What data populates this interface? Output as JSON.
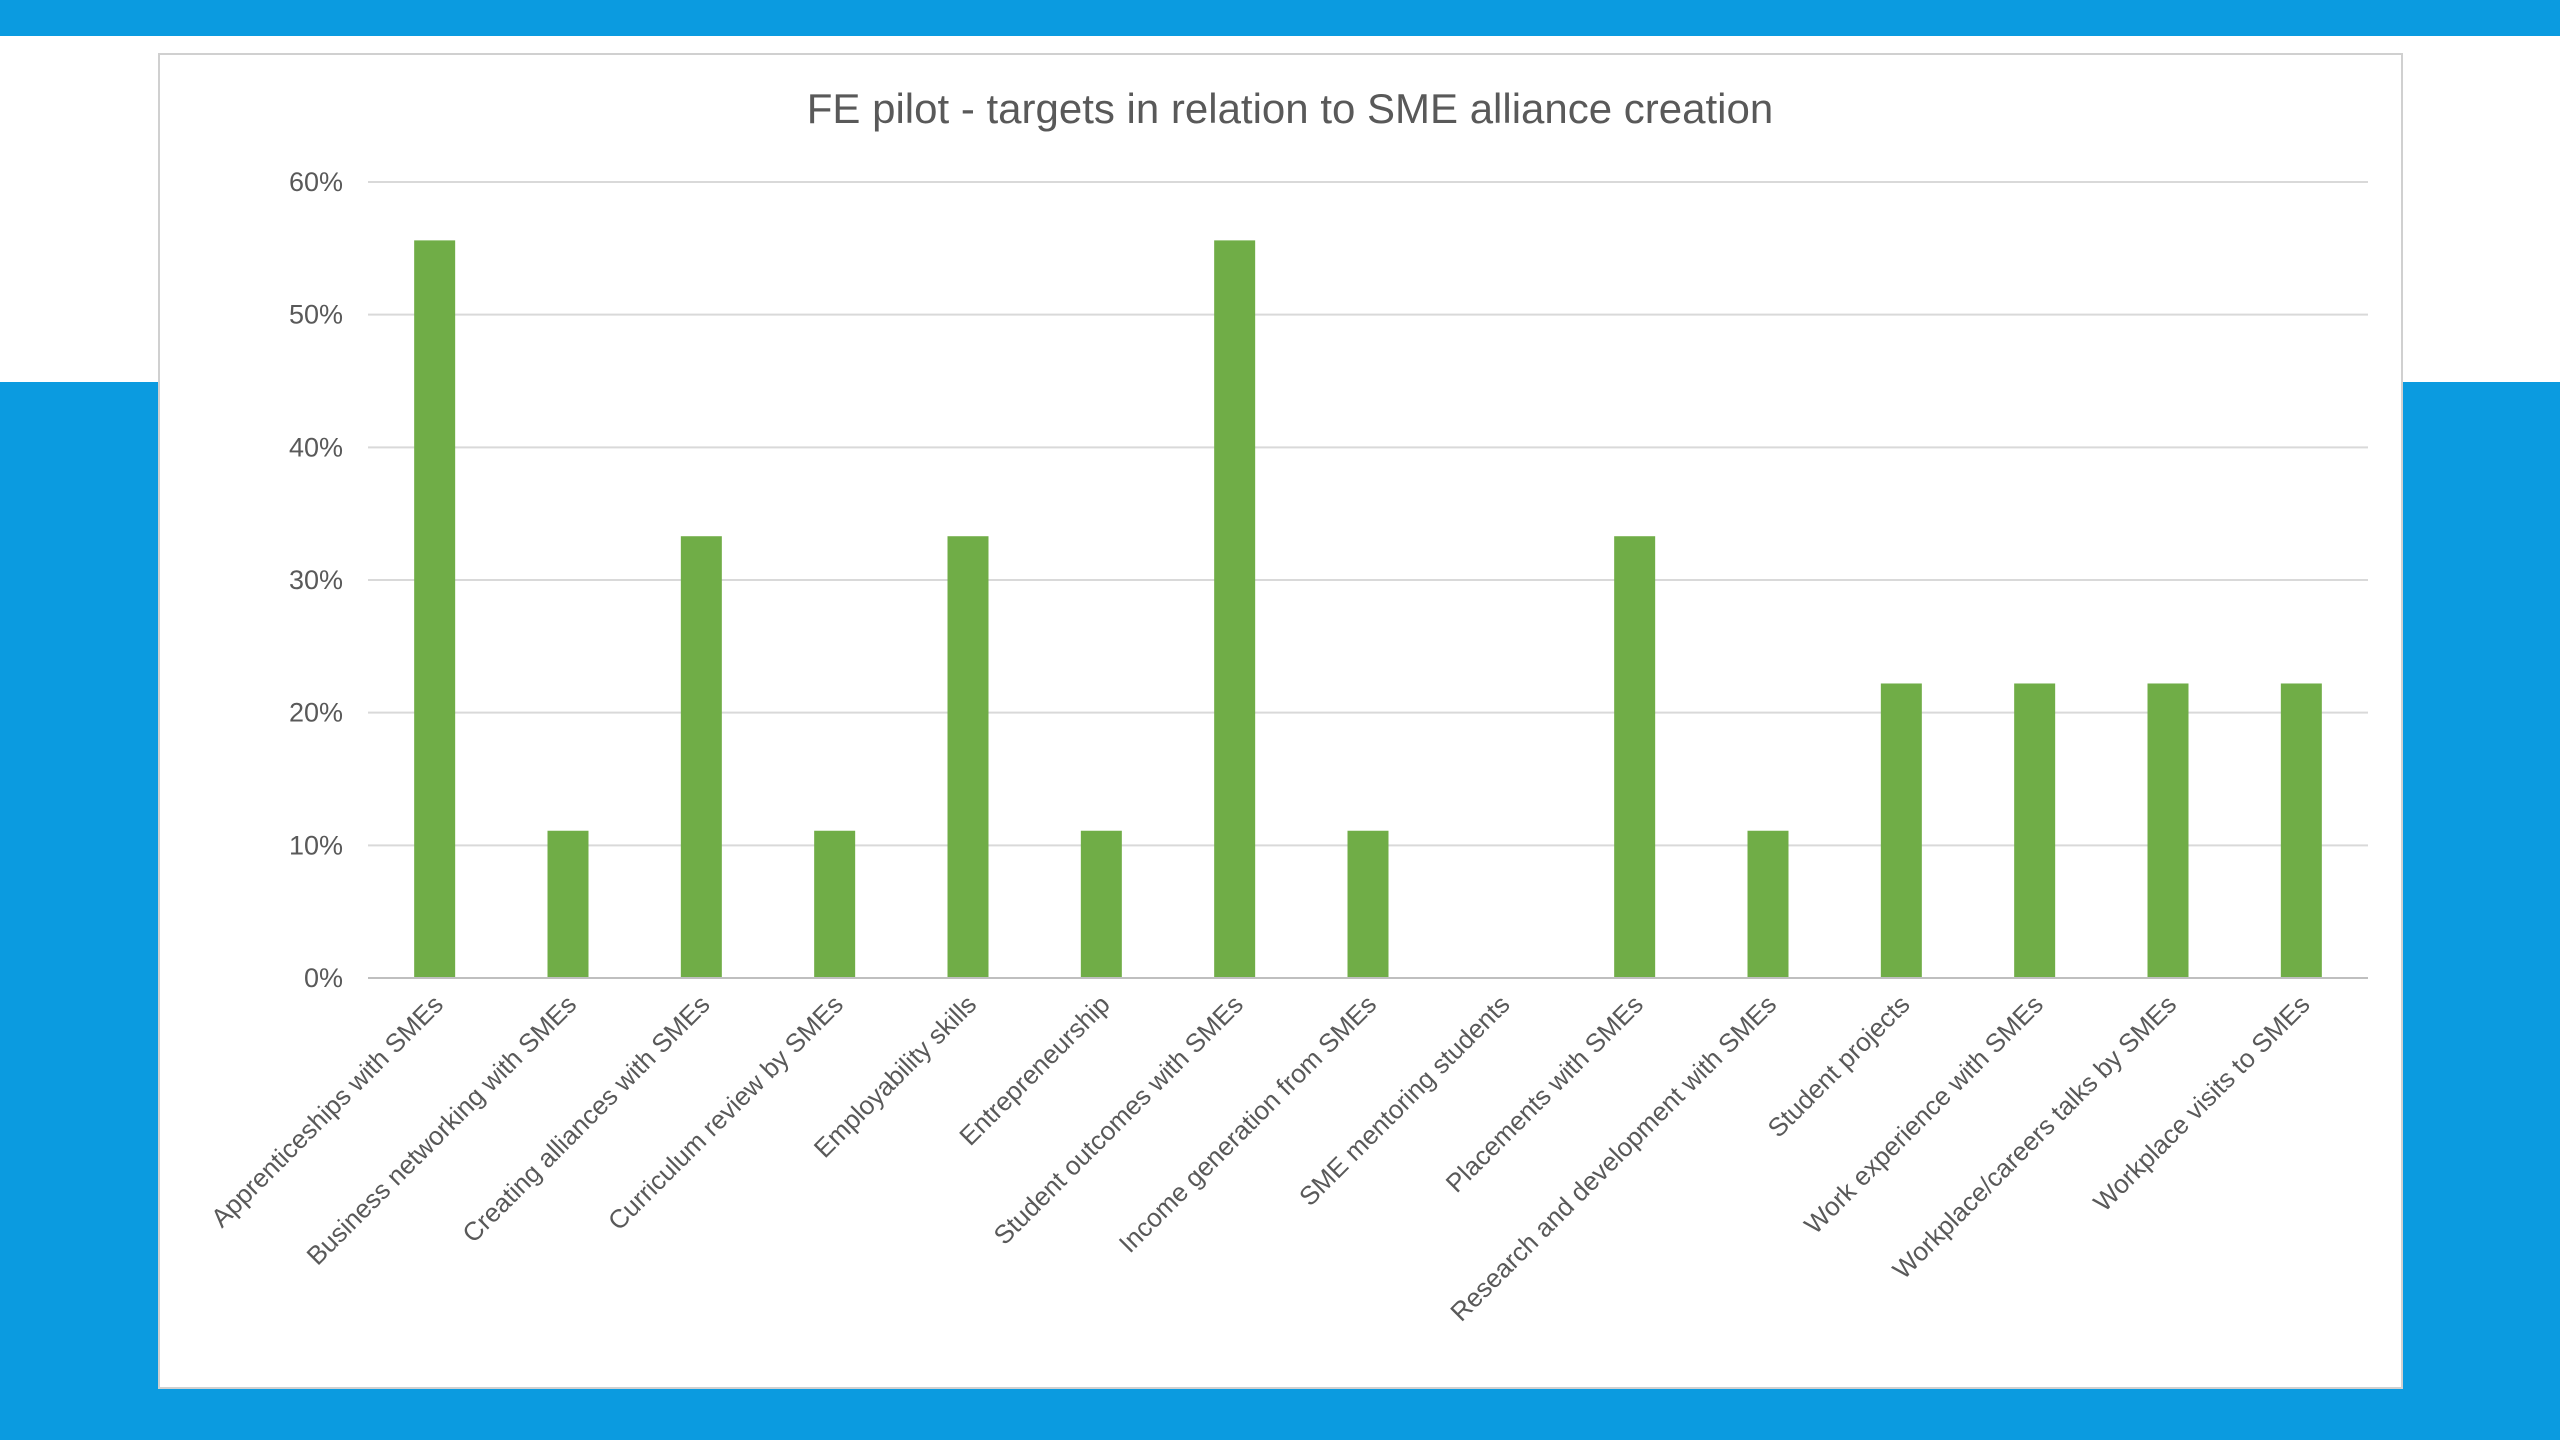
{
  "colors": {
    "background_blue": "#0b9be0",
    "bar": "#70ad47",
    "text": "#595959",
    "gridline": "#d9d9d9"
  },
  "chart_data": {
    "type": "bar",
    "title": "FE pilot - targets in relation to SME alliance creation",
    "xlabel": "",
    "ylabel": "",
    "ylim": [
      0,
      60
    ],
    "y_ticks": [
      "0%",
      "10%",
      "20%",
      "30%",
      "40%",
      "50%",
      "60%"
    ],
    "grid": true,
    "legend": "none",
    "categories": [
      "Apprenticeships with SMEs",
      "Business networking with SMEs",
      "Creating alliances with SMEs",
      "Curriculum review by SMEs",
      "Employability skills",
      "Entrepreneurship",
      "Student outcomes with SMEs",
      "Income generation from SMEs",
      "SME mentoring students",
      "Placements with SMEs",
      "Research and development with SMEs",
      "Student projects",
      "Work experience with SMEs",
      "Workplace/careers talks by SMEs",
      "Workplace visits to SMEs"
    ],
    "values": [
      55.6,
      11.1,
      33.3,
      11.1,
      33.3,
      11.1,
      55.6,
      11.1,
      0,
      33.3,
      11.1,
      22.2,
      22.2,
      22.2,
      22.2
    ]
  }
}
